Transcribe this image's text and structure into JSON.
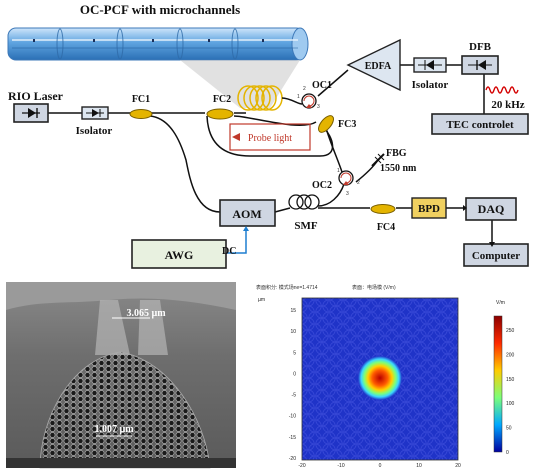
{
  "title_pcf": "OC-PCF with microchannels",
  "components": {
    "rio_laser": "RIO Laser",
    "isolator_left": "Isolator",
    "fc1": "FC1",
    "fc2": "FC2",
    "fc3": "FC3",
    "fc4": "FC4",
    "oc1": "OC1",
    "oc2": "OC2",
    "edfa": "EDFA",
    "isolator_right": "Isolator",
    "dfb": "DFB",
    "freq": "20 kHz",
    "tec": "TEC controlet",
    "probe": "Probe light",
    "fbg": "FBG",
    "fbg_wl": "1550 nm",
    "aom": "AOM",
    "smf": "SMF",
    "bpd": "BPD",
    "daq": "DAQ",
    "computer": "Computer",
    "awg": "AWG",
    "dc": "DC"
  },
  "port_labels": {
    "oc1_1": "1",
    "oc1_2": "2",
    "oc1_3": "3",
    "oc2_1": "1",
    "oc2_2": "2",
    "oc2_3": "3"
  },
  "sem": {
    "top_dim": "3.065 µm",
    "bottom_dim": "1.007 µm"
  },
  "mode_plot": {
    "header_left": "表面积分: 模式场ne=1.4714",
    "header_right": "表面：电场模 (V/m)",
    "axis_unit": "µm",
    "colorbar_unit": "V/m",
    "y_ticks": [
      "15",
      "10",
      "5",
      "0",
      "-5",
      "-10",
      "-15",
      "-20"
    ],
    "x_ticks": [
      "-20",
      "-10",
      "0",
      "10",
      "20"
    ],
    "colorbar_ticks": [
      "250",
      "200",
      "150",
      "100",
      "50",
      "0"
    ],
    "colors": {
      "background": "#1f33c8",
      "peak": "#cc1a00",
      "ring": "#3bd6ff"
    }
  },
  "colors": {
    "box_fill": "#dde6f0",
    "probe_loop": "#c0392b",
    "awg_line": "#1f7fd0",
    "fiber_blue": "#7fb6e8"
  }
}
